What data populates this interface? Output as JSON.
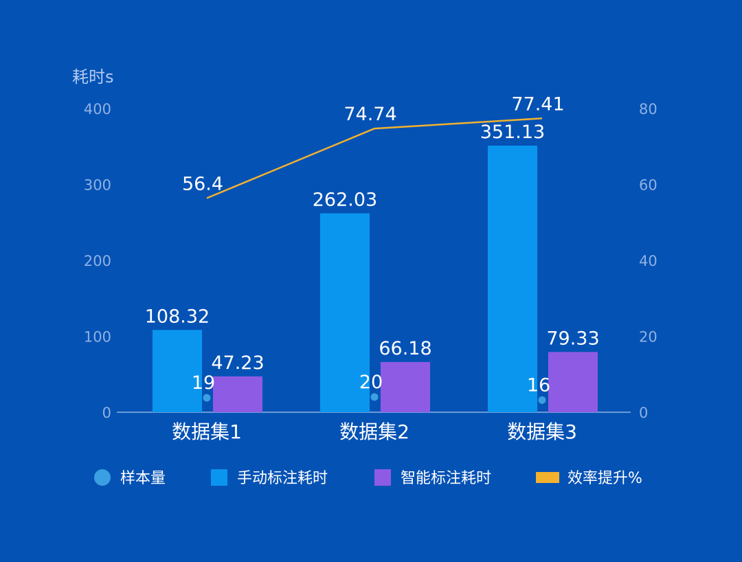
{
  "chart_data": {
    "type": "bar",
    "categories": [
      "数据集1",
      "数据集2",
      "数据集3"
    ],
    "ylabel": "耗时s",
    "ylim": [
      0,
      400
    ],
    "y_ticks": [
      0,
      100,
      200,
      300,
      400
    ],
    "y2lim": [
      0,
      80
    ],
    "y2_ticks": [
      0,
      20,
      40,
      60,
      80
    ],
    "grid": false,
    "legend_position": "bottom",
    "series": [
      {
        "name": "样本量",
        "kind": "scatter",
        "axis": "left",
        "values": [
          19,
          20,
          16
        ],
        "color": "#3aa0e2"
      },
      {
        "name": "手动标注耗时",
        "kind": "bar",
        "axis": "left",
        "values": [
          108.32,
          262.03,
          351.13
        ],
        "color": "#0a96ef"
      },
      {
        "name": "智能标注耗时",
        "kind": "bar",
        "axis": "left",
        "values": [
          47.23,
          66.18,
          79.33
        ],
        "color": "#8e5be4"
      },
      {
        "name": "效率提升%",
        "kind": "line",
        "axis": "right",
        "values": [
          56.4,
          74.74,
          77.41
        ],
        "color": "#f3b22e"
      }
    ]
  }
}
